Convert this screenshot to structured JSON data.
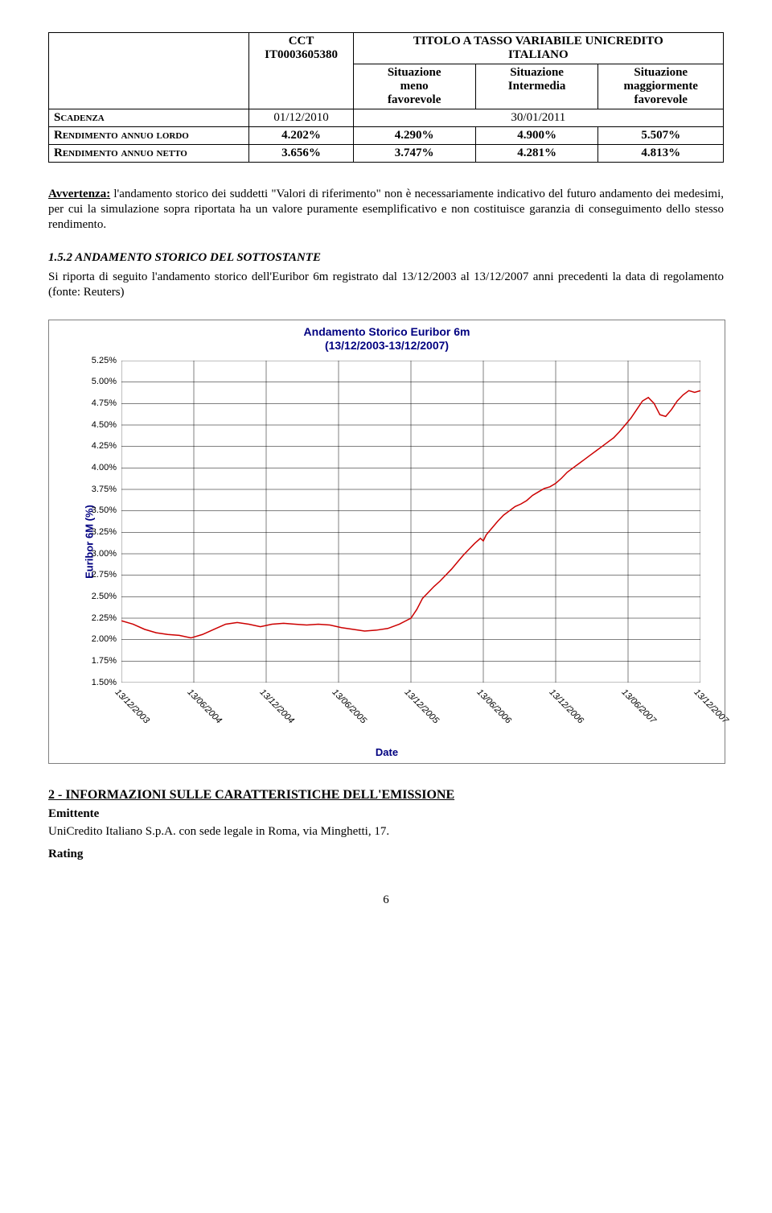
{
  "table": {
    "col1_header_line1": "CCT",
    "col1_header_line2": "IT0003605380",
    "super_header_line1": "TITOLO A TASSO VARIABILE UNICREDITO",
    "super_header_line2": "ITALIANO",
    "col2_line1": "Situazione",
    "col2_line2": "meno",
    "col2_line3": "favorevole",
    "col3_line1": "Situazione",
    "col3_line2": "Intermedia",
    "col4_line1": "Situazione",
    "col4_line2": "maggiormente",
    "col4_line3": "favorevole",
    "row1_label": "Scadenza",
    "row1_cct": "01/12/2010",
    "row1_span": "30/01/2011",
    "row2_label": "Rendimento annuo lordo",
    "row2_v1": "4.202%",
    "row2_v2": "4.290%",
    "row2_v3": "4.900%",
    "row2_v4": "5.507%",
    "row3_label": "Rendimento annuo netto",
    "row3_v1": "3.656%",
    "row3_v2": "3.747%",
    "row3_v3": "4.281%",
    "row3_v4": "4.813%"
  },
  "avvertenza_label": "Avvertenza:",
  "avvertenza_text": " l'andamento storico dei suddetti \"Valori di riferimento\" non è necessariamente indicativo del futuro andamento dei medesimi, per cui la simulazione sopra riportata ha un valore puramente esemplificativo e non costituisce garanzia di conseguimento dello stesso rendimento.",
  "section_1_5_2": "1.5.2 ANDAMENTO STORICO DEL SOTTOSTANTE",
  "section_1_5_2_body": "Si riporta di seguito l'andamento storico dell'Euribor 6m registrato dal 13/12/2003 al 13/12/2007 anni precedenti la data di regolamento (fonte: Reuters)",
  "chart": {
    "type": "line",
    "title_line1": "Andamento Storico Euribor 6m",
    "title_line2": "(13/12/2003-13/12/2007)",
    "y_label": "Euribor 6M (%)",
    "x_label": "Date",
    "background_color": "#ffffff",
    "border_color": "#808080",
    "title_color": "#000080",
    "grid_color": "#000000",
    "line_color": "#cc0000",
    "line_width": 1.5,
    "y_min": 1.5,
    "y_max": 5.25,
    "y_tick_step": 0.25,
    "y_ticks": [
      "1.50%",
      "1.75%",
      "2.00%",
      "2.25%",
      "2.50%",
      "2.75%",
      "3.00%",
      "3.25%",
      "3.50%",
      "3.75%",
      "4.00%",
      "4.25%",
      "4.50%",
      "4.75%",
      "5.00%",
      "5.25%"
    ],
    "x_ticks": [
      "13/12/2003",
      "13/06/2004",
      "13/12/2004",
      "13/06/2005",
      "13/12/2005",
      "13/06/2006",
      "13/12/2006",
      "13/06/2007",
      "13/12/2007"
    ],
    "x_tick_fontsize": 11,
    "y_tick_fontsize": 11,
    "tick_font_family": "Arial",
    "x_tick_style": "italic",
    "data": [
      [
        0.0,
        2.22
      ],
      [
        0.02,
        2.18
      ],
      [
        0.04,
        2.12
      ],
      [
        0.06,
        2.08
      ],
      [
        0.08,
        2.06
      ],
      [
        0.1,
        2.05
      ],
      [
        0.12,
        2.02
      ],
      [
        0.14,
        2.06
      ],
      [
        0.16,
        2.12
      ],
      [
        0.18,
        2.18
      ],
      [
        0.2,
        2.2
      ],
      [
        0.22,
        2.18
      ],
      [
        0.24,
        2.15
      ],
      [
        0.26,
        2.18
      ],
      [
        0.28,
        2.19
      ],
      [
        0.3,
        2.18
      ],
      [
        0.32,
        2.17
      ],
      [
        0.34,
        2.18
      ],
      [
        0.36,
        2.17
      ],
      [
        0.38,
        2.14
      ],
      [
        0.4,
        2.12
      ],
      [
        0.42,
        2.1
      ],
      [
        0.44,
        2.11
      ],
      [
        0.46,
        2.13
      ],
      [
        0.48,
        2.18
      ],
      [
        0.5,
        2.25
      ],
      [
        0.51,
        2.35
      ],
      [
        0.52,
        2.48
      ],
      [
        0.53,
        2.55
      ],
      [
        0.54,
        2.62
      ],
      [
        0.55,
        2.68
      ],
      [
        0.56,
        2.75
      ],
      [
        0.57,
        2.82
      ],
      [
        0.58,
        2.9
      ],
      [
        0.59,
        2.98
      ],
      [
        0.6,
        3.05
      ],
      [
        0.61,
        3.12
      ],
      [
        0.62,
        3.18
      ],
      [
        0.625,
        3.15
      ],
      [
        0.63,
        3.22
      ],
      [
        0.64,
        3.3
      ],
      [
        0.65,
        3.38
      ],
      [
        0.66,
        3.45
      ],
      [
        0.67,
        3.5
      ],
      [
        0.68,
        3.55
      ],
      [
        0.69,
        3.58
      ],
      [
        0.7,
        3.62
      ],
      [
        0.71,
        3.68
      ],
      [
        0.72,
        3.72
      ],
      [
        0.73,
        3.76
      ],
      [
        0.74,
        3.78
      ],
      [
        0.75,
        3.82
      ],
      [
        0.76,
        3.88
      ],
      [
        0.77,
        3.95
      ],
      [
        0.78,
        4.0
      ],
      [
        0.79,
        4.05
      ],
      [
        0.8,
        4.1
      ],
      [
        0.81,
        4.15
      ],
      [
        0.82,
        4.2
      ],
      [
        0.83,
        4.25
      ],
      [
        0.84,
        4.3
      ],
      [
        0.85,
        4.35
      ],
      [
        0.86,
        4.42
      ],
      [
        0.87,
        4.5
      ],
      [
        0.88,
        4.58
      ],
      [
        0.89,
        4.68
      ],
      [
        0.9,
        4.78
      ],
      [
        0.91,
        4.82
      ],
      [
        0.92,
        4.75
      ],
      [
        0.93,
        4.62
      ],
      [
        0.94,
        4.6
      ],
      [
        0.95,
        4.68
      ],
      [
        0.96,
        4.78
      ],
      [
        0.97,
        4.85
      ],
      [
        0.98,
        4.9
      ],
      [
        0.99,
        4.88
      ],
      [
        1.0,
        4.9
      ]
    ]
  },
  "section2_title": "2 - INFORMAZIONI SULLE CARATTERISTICHE DELL'EMISSIONE",
  "emittente_label": "Emittente",
  "emittente_text": "UniCredito Italiano S.p.A. con sede legale in Roma, via Minghetti, 17.",
  "rating_label": "Rating",
  "page_number": "6"
}
